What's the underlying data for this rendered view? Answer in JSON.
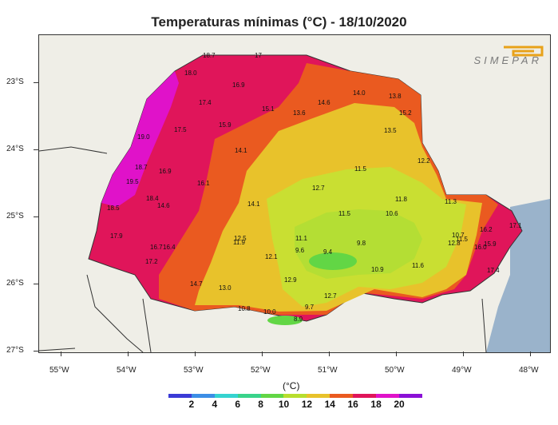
{
  "title": "Temperaturas mínimas (°C) - 18/10/2020",
  "logo_text": "SIMEPAR",
  "lat_labels": [
    "23°S",
    "24°S",
    "25°S",
    "26°S",
    "27°S"
  ],
  "lon_labels": [
    "55°W",
    "54°W",
    "53°W",
    "52°W",
    "51°W",
    "50°W",
    "49°W",
    "48°W"
  ],
  "legend": {
    "unit": "(°C)",
    "colors": [
      "#3b3bd6",
      "#3c8ee6",
      "#35d3d0",
      "#39d38a",
      "#62d645",
      "#b7de2e",
      "#e8c22b",
      "#ea5a20",
      "#e0155a",
      "#e012c9",
      "#8a10d6"
    ],
    "labels": [
      "2",
      "4",
      "6",
      "8",
      "10",
      "12",
      "14",
      "16",
      "18",
      "20"
    ]
  },
  "map_colors": {
    "ocean": "#9ab3cb",
    "land_outside": "#efeee7",
    "magenta": "#e012c9",
    "crimson": "#e0155a",
    "orange": "#ea5a20",
    "amber": "#e8c22b",
    "yellowgreen": "#c9df32",
    "lightgreen": "#b4de34",
    "green": "#62d645"
  },
  "station_values": [
    "18.7",
    "17",
    "18.0",
    "16.9",
    "17.4",
    "17.5",
    "15.9",
    "19.0",
    "18.7",
    "16.9",
    "19.5",
    "16.1",
    "18.4",
    "14.6",
    "18.5",
    "14.1",
    "14.1",
    "17.9",
    "16.7",
    "16.4",
    "17.2",
    "14.7",
    "15.1",
    "13.6",
    "14.6",
    "14.0",
    "13.8",
    "15.2",
    "13.5",
    "12.2",
    "11.5",
    "12.7",
    "11.8",
    "11.5",
    "10.6",
    "11.3",
    "12.5",
    "11.9",
    "11.1",
    "9.6",
    "9.8",
    "9.4",
    "12.1",
    "10.9",
    "11.6",
    "12.9",
    "13.0",
    "12.7",
    "10.8",
    "10.0",
    "9.7",
    "8.9",
    "10.7",
    "11.5",
    "12.8",
    "16.2",
    "17.1",
    "16.0",
    "15.9",
    "17.4"
  ]
}
